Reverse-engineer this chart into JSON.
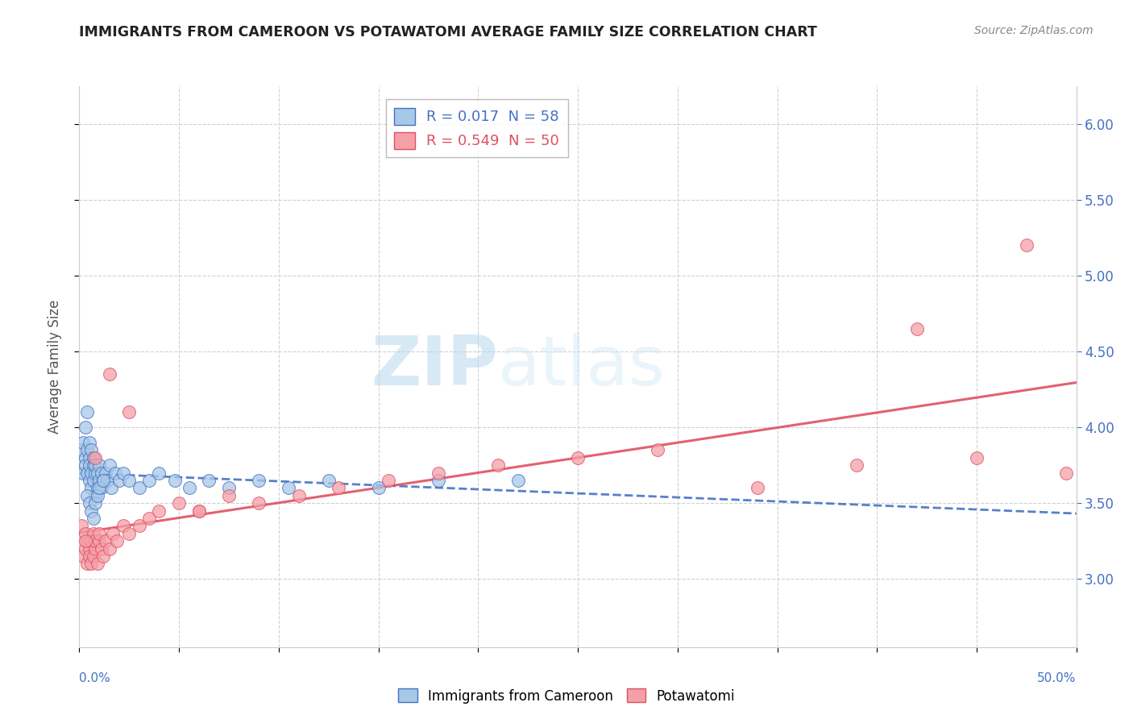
{
  "title": "IMMIGRANTS FROM CAMEROON VS POTAWATOMI AVERAGE FAMILY SIZE CORRELATION CHART",
  "source": "Source: ZipAtlas.com",
  "ylabel": "Average Family Size",
  "y_ticks": [
    3.0,
    3.5,
    4.0,
    4.5,
    5.0,
    5.5,
    6.0
  ],
  "x_range": [
    0.0,
    0.5
  ],
  "y_range": [
    2.55,
    6.25
  ],
  "legend1_label": "R = 0.017  N = 58",
  "legend2_label": "R = 0.549  N = 50",
  "cameroon_color": "#a8c8e8",
  "potawatomi_color": "#f4a0a8",
  "cameroon_edge_color": "#4472c4",
  "potawatomi_edge_color": "#e05060",
  "cameroon_line_color": "#4472c4",
  "potawatomi_line_color": "#e05060",
  "tick_color": "#4472c4",
  "watermark_color": "#d8eaf8",
  "background_color": "#ffffff",
  "grid_color": "#d0d0d0",
  "cameroon_x": [
    0.001,
    0.002,
    0.002,
    0.003,
    0.003,
    0.003,
    0.004,
    0.004,
    0.004,
    0.005,
    0.005,
    0.005,
    0.005,
    0.006,
    0.006,
    0.006,
    0.007,
    0.007,
    0.007,
    0.008,
    0.008,
    0.008,
    0.009,
    0.009,
    0.01,
    0.01,
    0.011,
    0.011,
    0.012,
    0.013,
    0.014,
    0.015,
    0.016,
    0.018,
    0.02,
    0.022,
    0.025,
    0.03,
    0.035,
    0.04,
    0.048,
    0.055,
    0.065,
    0.075,
    0.09,
    0.105,
    0.125,
    0.15,
    0.18,
    0.22,
    0.004,
    0.005,
    0.006,
    0.007,
    0.008,
    0.009,
    0.01,
    0.012
  ],
  "cameroon_y": [
    3.85,
    3.7,
    3.9,
    4.0,
    3.8,
    3.75,
    4.1,
    3.85,
    3.7,
    3.9,
    3.65,
    3.8,
    3.75,
    3.7,
    3.85,
    3.6,
    3.75,
    3.8,
    3.65,
    3.7,
    3.55,
    3.75,
    3.6,
    3.7,
    3.65,
    3.75,
    3.6,
    3.7,
    3.65,
    3.7,
    3.65,
    3.75,
    3.6,
    3.7,
    3.65,
    3.7,
    3.65,
    3.6,
    3.65,
    3.7,
    3.65,
    3.6,
    3.65,
    3.6,
    3.65,
    3.6,
    3.65,
    3.6,
    3.65,
    3.65,
    3.55,
    3.5,
    3.45,
    3.4,
    3.5,
    3.55,
    3.6,
    3.65
  ],
  "potawatomi_x": [
    0.001,
    0.002,
    0.003,
    0.003,
    0.004,
    0.004,
    0.005,
    0.005,
    0.006,
    0.006,
    0.007,
    0.007,
    0.008,
    0.008,
    0.009,
    0.01,
    0.01,
    0.011,
    0.012,
    0.013,
    0.015,
    0.017,
    0.019,
    0.022,
    0.025,
    0.03,
    0.035,
    0.04,
    0.05,
    0.06,
    0.075,
    0.09,
    0.11,
    0.13,
    0.155,
    0.18,
    0.21,
    0.25,
    0.29,
    0.34,
    0.39,
    0.42,
    0.45,
    0.475,
    0.495,
    0.003,
    0.008,
    0.015,
    0.025,
    0.06
  ],
  "potawatomi_y": [
    3.35,
    3.15,
    3.3,
    3.2,
    3.25,
    3.1,
    3.2,
    3.15,
    3.25,
    3.1,
    3.3,
    3.15,
    3.2,
    3.25,
    3.1,
    3.25,
    3.3,
    3.2,
    3.15,
    3.25,
    3.2,
    3.3,
    3.25,
    3.35,
    3.3,
    3.35,
    3.4,
    3.45,
    3.5,
    3.45,
    3.55,
    3.5,
    3.55,
    3.6,
    3.65,
    3.7,
    3.75,
    3.8,
    3.85,
    3.6,
    3.75,
    4.65,
    3.8,
    5.2,
    3.7,
    3.25,
    3.8,
    4.35,
    4.1,
    3.45
  ],
  "cameroon_line_start_x": 0.0,
  "cameroon_line_end_x": 0.5,
  "potawatomi_line_start_x": 0.0,
  "potawatomi_line_end_x": 0.5
}
